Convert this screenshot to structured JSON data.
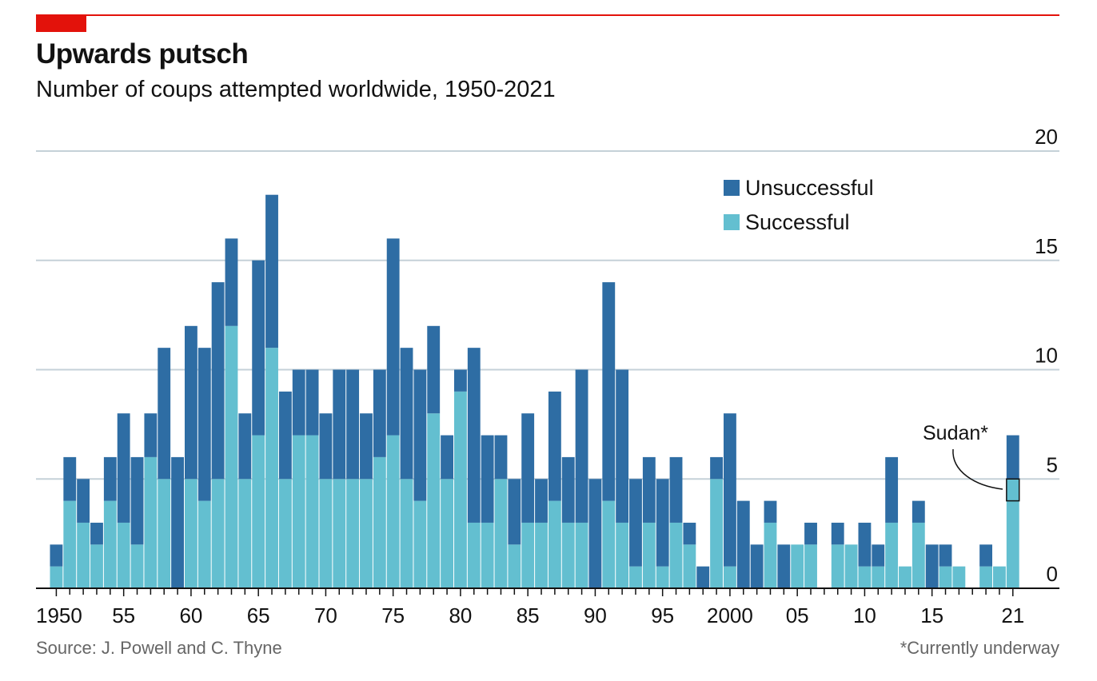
{
  "header": {
    "title": "Upwards putsch",
    "subtitle": "Number of coups attempted worldwide, 1950-2021"
  },
  "footer": {
    "source": "Source: J. Powell and C. Thyne",
    "footnote": "*Currently underway"
  },
  "colors": {
    "accent": "#e3120b",
    "unsuccessful": "#2e6da4",
    "successful": "#63bfd0",
    "grid": "#c5d1d8"
  },
  "annotation": {
    "label": "Sudan*",
    "year": 2021,
    "value": 5
  },
  "chart_data": {
    "type": "bar",
    "stacked": true,
    "x": [
      1950,
      1951,
      1952,
      1953,
      1954,
      1955,
      1956,
      1957,
      1958,
      1959,
      1960,
      1961,
      1962,
      1963,
      1964,
      1965,
      1966,
      1967,
      1968,
      1969,
      1970,
      1971,
      1972,
      1973,
      1974,
      1975,
      1976,
      1977,
      1978,
      1979,
      1980,
      1981,
      1982,
      1983,
      1984,
      1985,
      1986,
      1987,
      1988,
      1989,
      1990,
      1991,
      1992,
      1993,
      1994,
      1995,
      1996,
      1997,
      1998,
      1999,
      2000,
      2001,
      2002,
      2003,
      2004,
      2005,
      2006,
      2007,
      2008,
      2009,
      2010,
      2011,
      2012,
      2013,
      2014,
      2015,
      2016,
      2017,
      2018,
      2019,
      2020,
      2021
    ],
    "series": [
      {
        "name": "Successful",
        "values": [
          1,
          4,
          3,
          2,
          4,
          3,
          2,
          6,
          5,
          0,
          5,
          4,
          5,
          12,
          5,
          7,
          11,
          5,
          7,
          7,
          5,
          5,
          5,
          5,
          6,
          7,
          5,
          4,
          8,
          5,
          9,
          3,
          3,
          5,
          2,
          3,
          3,
          4,
          3,
          3,
          0,
          4,
          3,
          1,
          3,
          1,
          3,
          2,
          0,
          5,
          1,
          0,
          0,
          3,
          0,
          2,
          2,
          0,
          2,
          2,
          1,
          1,
          3,
          1,
          3,
          0,
          1,
          1,
          0,
          1,
          1,
          5
        ]
      },
      {
        "name": "Unsuccessful",
        "values": [
          1,
          2,
          2,
          1,
          2,
          5,
          4,
          2,
          6,
          6,
          7,
          7,
          9,
          4,
          3,
          8,
          7,
          4,
          3,
          3,
          3,
          5,
          5,
          3,
          4,
          9,
          6,
          6,
          4,
          2,
          1,
          8,
          4,
          2,
          3,
          5,
          2,
          5,
          3,
          7,
          5,
          10,
          7,
          4,
          3,
          4,
          3,
          1,
          1,
          1,
          7,
          4,
          2,
          1,
          2,
          0,
          1,
          0,
          1,
          0,
          2,
          1,
          3,
          0,
          1,
          2,
          1,
          0,
          0,
          1,
          0,
          2
        ]
      }
    ],
    "legend": [
      "Unsuccessful",
      "Successful"
    ],
    "legend_position": "top-right",
    "x_tick_labels": [
      "1950",
      "55",
      "60",
      "65",
      "70",
      "75",
      "80",
      "85",
      "90",
      "95",
      "2000",
      "05",
      "10",
      "15",
      "21"
    ],
    "x_tick_years": [
      1950,
      1955,
      1960,
      1965,
      1970,
      1975,
      1980,
      1985,
      1990,
      1995,
      2000,
      2005,
      2010,
      2015,
      2021
    ],
    "y_ticks": [
      0,
      5,
      10,
      15,
      20
    ],
    "ylim": [
      0,
      20
    ],
    "xlim": [
      1949.5,
      2021.5
    ],
    "y_axis_position": "right",
    "grid": true
  }
}
